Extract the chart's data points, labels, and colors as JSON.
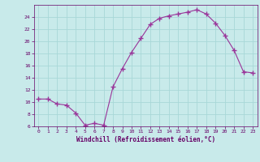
{
  "x": [
    0,
    1,
    2,
    3,
    4,
    5,
    6,
    7,
    8,
    9,
    10,
    11,
    12,
    13,
    14,
    15,
    16,
    17,
    18,
    19,
    20,
    21,
    22,
    23
  ],
  "y": [
    10.5,
    10.5,
    9.7,
    9.5,
    8.2,
    6.2,
    6.5,
    6.2,
    12.5,
    15.5,
    18.2,
    20.5,
    22.8,
    23.8,
    24.2,
    24.5,
    24.8,
    25.2,
    24.5,
    23.0,
    21.0,
    18.5,
    15.0,
    14.8
  ],
  "line_color": "#993399",
  "marker": "+",
  "bg_color": "#c8eaea",
  "grid_color": "#a8d8d8",
  "xlabel": "Windchill (Refroidissement éolien,°C)",
  "xlabel_color": "#660066",
  "tick_color": "#660066",
  "ylim": [
    6,
    26
  ],
  "xlim": [
    -0.5,
    23.5
  ],
  "yticks": [
    6,
    8,
    10,
    12,
    14,
    16,
    18,
    20,
    22,
    24
  ],
  "xticks": [
    0,
    1,
    2,
    3,
    4,
    5,
    6,
    7,
    8,
    9,
    10,
    11,
    12,
    13,
    14,
    15,
    16,
    17,
    18,
    19,
    20,
    21,
    22,
    23
  ],
  "figsize": [
    3.2,
    2.0
  ],
  "dpi": 100
}
